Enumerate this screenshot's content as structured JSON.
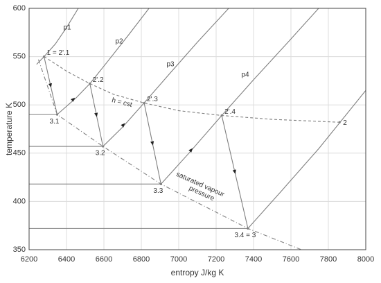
{
  "chart_data": {
    "type": "line",
    "xlabel": "entropy J/kg K",
    "ylabel": "temperature K",
    "xlim": [
      6200,
      8000
    ],
    "ylim": [
      350,
      600
    ],
    "xticks": [
      6200,
      6400,
      6600,
      6800,
      7000,
      7200,
      7400,
      7600,
      7800,
      8000
    ],
    "yticks": [
      350,
      400,
      450,
      500,
      550,
      600
    ],
    "grid": true,
    "color": "#7f7f7f",
    "isobars": [
      {
        "label": "p1",
        "x": [
          6240,
          6280,
          6340,
          6400,
          6463
        ],
        "y": [
          542,
          550,
          563,
          580,
          600
        ]
      },
      {
        "label": "p2",
        "x": [
          6350,
          6450,
          6525,
          6620,
          6730,
          6841
        ],
        "y": [
          490,
          507,
          522,
          545,
          572,
          600
        ]
      },
      {
        "label": "p3",
        "x": [
          6595,
          6700,
          6815,
          6950,
          7100,
          7267
        ],
        "y": [
          457,
          477,
          502,
          532,
          565,
          600
        ]
      },
      {
        "label": "p4",
        "x": [
          6905,
          7050,
          7230,
          7400,
          7580,
          7748
        ],
        "y": [
          418,
          449,
          489,
          526,
          564,
          600
        ]
      },
      {
        "x": [
          7370,
          7550,
          7750,
          8000
        ],
        "y": [
          372,
          411,
          455,
          515
        ]
      }
    ],
    "h_curve": {
      "label": "h = cst",
      "x": [
        6280,
        6400,
        6525,
        6650,
        6815,
        7000,
        7230,
        7500,
        7860
      ],
      "y": [
        550,
        535,
        522,
        511,
        502,
        494,
        489,
        485,
        482
      ]
    },
    "saturation": {
      "label": [
        "saturated vapour",
        "pressure"
      ],
      "x": [
        6250,
        6350,
        6595,
        6905,
        7370,
        7656
      ],
      "y": [
        547,
        490,
        457,
        418,
        372,
        350
      ]
    },
    "points": [
      {
        "label": "1 = 2'.1",
        "x": 6280,
        "y": 550
      },
      {
        "label": "3.1",
        "x": 6350,
        "y": 490
      },
      {
        "label": "2'.2",
        "x": 6525,
        "y": 522
      },
      {
        "label": "3.2",
        "x": 6595,
        "y": 457
      },
      {
        "label": "2'.3",
        "x": 6815,
        "y": 502
      },
      {
        "label": "3.3",
        "x": 6905,
        "y": 418
      },
      {
        "label": "2'.4",
        "x": 7230,
        "y": 489
      },
      {
        "label": "3.4 = 3",
        "x": 7370,
        "y": 372
      }
    ],
    "end_point": {
      "label": "2",
      "x": 7860,
      "y": 482
    }
  }
}
